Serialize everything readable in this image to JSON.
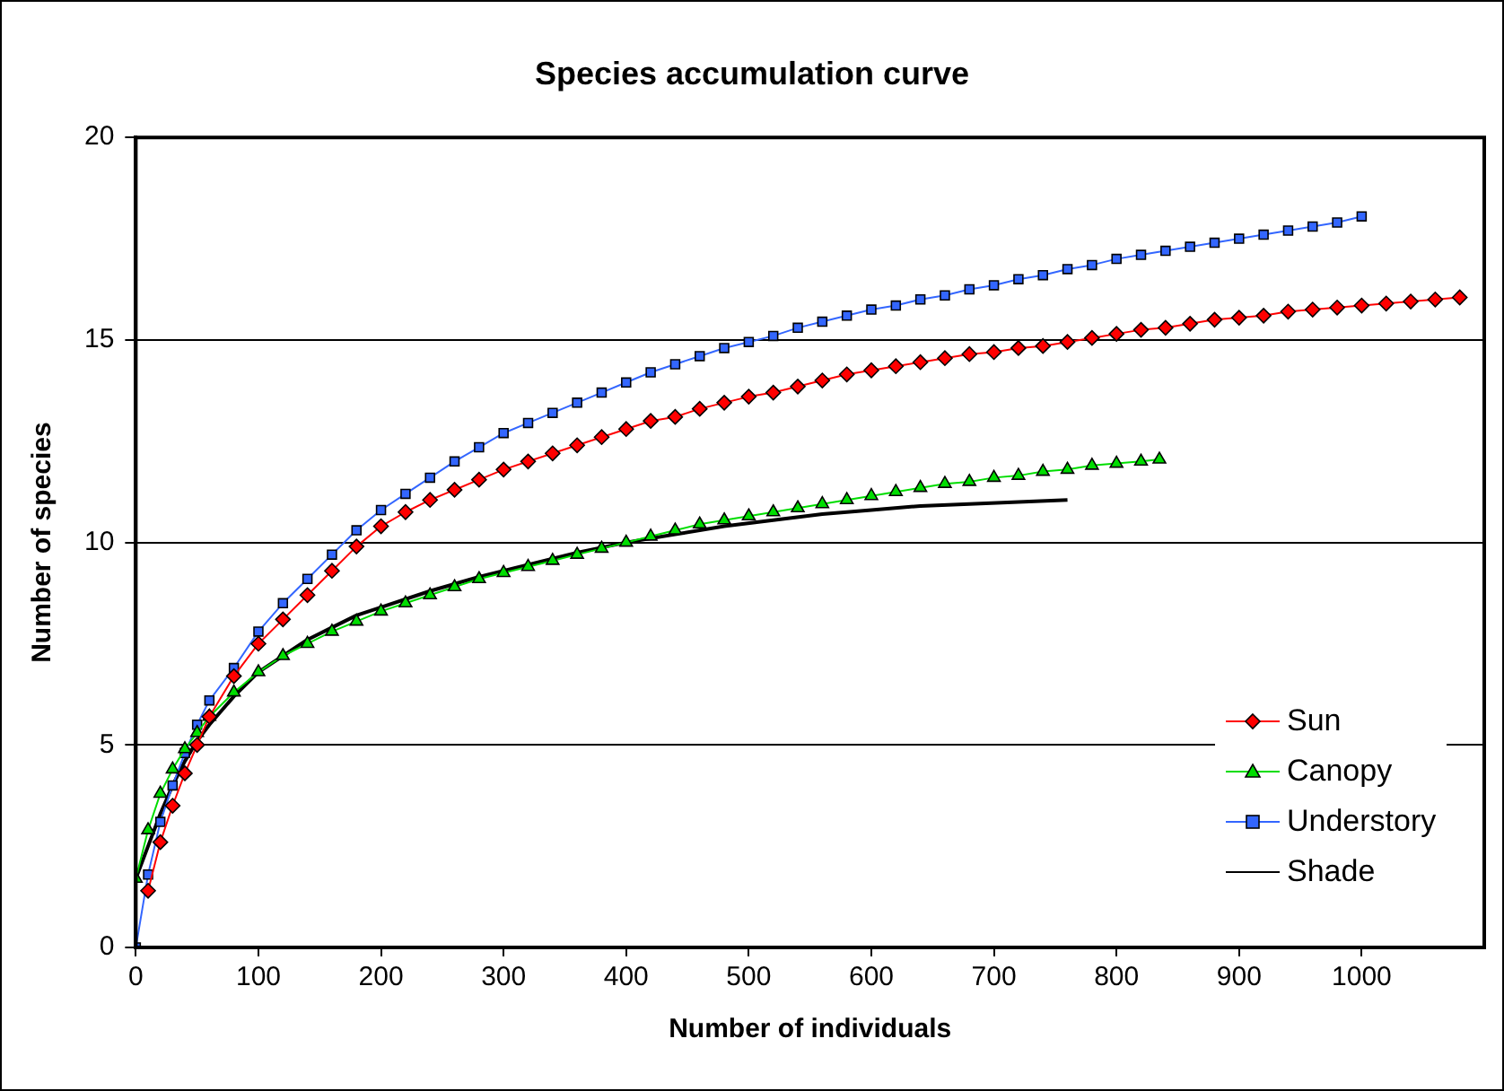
{
  "chart_data": {
    "type": "line",
    "title": "Species accumulation curve",
    "xlabel": "Number of individuals",
    "ylabel": "Number of species",
    "xlim": [
      0,
      1100
    ],
    "xticks": [
      0,
      100,
      200,
      300,
      400,
      500,
      600,
      700,
      800,
      900,
      1000
    ],
    "ylim": [
      0,
      20
    ],
    "yticks": [
      0,
      5,
      10,
      15,
      20
    ],
    "grid": "y",
    "legend": "bottom right",
    "series": [
      {
        "name": "Sun",
        "color": "#ff0000",
        "marker": "diamond",
        "x": [
          10,
          20,
          30,
          40,
          50,
          60,
          80,
          100,
          120,
          140,
          160,
          180,
          200,
          220,
          240,
          260,
          280,
          300,
          320,
          340,
          360,
          380,
          400,
          420,
          440,
          460,
          480,
          500,
          520,
          540,
          560,
          580,
          600,
          620,
          640,
          660,
          680,
          700,
          720,
          740,
          760,
          780,
          800,
          820,
          840,
          860,
          880,
          900,
          920,
          940,
          960,
          980,
          1000,
          1020,
          1040,
          1060,
          1080
        ],
        "values": [
          1.4,
          2.6,
          3.5,
          4.3,
          5.0,
          5.7,
          6.7,
          7.5,
          8.1,
          8.7,
          9.3,
          9.9,
          10.4,
          10.75,
          11.05,
          11.3,
          11.55,
          11.8,
          12,
          12.2,
          12.4,
          12.6,
          12.8,
          13,
          13.1,
          13.3,
          13.45,
          13.6,
          13.7,
          13.85,
          14,
          14.15,
          14.25,
          14.35,
          14.45,
          14.55,
          14.65,
          14.7,
          14.8,
          14.85,
          14.95,
          15.05,
          15.15,
          15.25,
          15.3,
          15.4,
          15.5,
          15.55,
          15.6,
          15.7,
          15.75,
          15.8,
          15.85,
          15.9,
          15.95,
          16,
          16.05
        ]
      },
      {
        "name": "Canopy",
        "color": "#00dd00",
        "marker": "triangle",
        "x": [
          0,
          10,
          20,
          30,
          40,
          50,
          60,
          80,
          100,
          120,
          140,
          160,
          180,
          200,
          220,
          240,
          260,
          280,
          300,
          320,
          340,
          360,
          380,
          400,
          420,
          440,
          460,
          480,
          500,
          520,
          540,
          560,
          580,
          600,
          620,
          640,
          660,
          680,
          700,
          720,
          740,
          760,
          780,
          800,
          820,
          835
        ],
        "values": [
          1.7,
          2.9,
          3.8,
          4.4,
          4.9,
          5.3,
          5.7,
          6.3,
          6.8,
          7.2,
          7.5,
          7.8,
          8.05,
          8.3,
          8.5,
          8.7,
          8.9,
          9.1,
          9.25,
          9.4,
          9.55,
          9.7,
          9.85,
          10,
          10.15,
          10.3,
          10.45,
          10.55,
          10.65,
          10.75,
          10.85,
          10.95,
          11.05,
          11.15,
          11.25,
          11.35,
          11.45,
          11.5,
          11.6,
          11.65,
          11.75,
          11.8,
          11.9,
          11.95,
          12,
          12.05
        ]
      },
      {
        "name": "Understory",
        "color": "#3366ff",
        "marker": "square",
        "x": [
          0,
          10,
          20,
          30,
          40,
          50,
          60,
          80,
          100,
          120,
          140,
          160,
          180,
          200,
          220,
          240,
          260,
          280,
          300,
          320,
          340,
          360,
          380,
          400,
          420,
          440,
          460,
          480,
          500,
          520,
          540,
          560,
          580,
          600,
          620,
          640,
          660,
          680,
          700,
          720,
          740,
          760,
          780,
          800,
          820,
          840,
          860,
          880,
          900,
          920,
          940,
          960,
          980,
          1000
        ],
        "values": [
          0,
          1.8,
          3.1,
          4.0,
          4.8,
          5.5,
          6.1,
          6.9,
          7.8,
          8.5,
          9.1,
          9.7,
          10.3,
          10.8,
          11.2,
          11.6,
          12,
          12.35,
          12.7,
          12.95,
          13.2,
          13.45,
          13.7,
          13.95,
          14.2,
          14.4,
          14.6,
          14.8,
          14.95,
          15.1,
          15.3,
          15.45,
          15.6,
          15.75,
          15.85,
          16,
          16.1,
          16.25,
          16.35,
          16.5,
          16.6,
          16.75,
          16.85,
          17,
          17.1,
          17.2,
          17.3,
          17.4,
          17.5,
          17.6,
          17.7,
          17.8,
          17.9,
          18.05
        ]
      },
      {
        "name": "Shade",
        "color": "#000000",
        "marker": "none",
        "x": [
          0,
          10,
          20,
          30,
          40,
          50,
          60,
          80,
          100,
          120,
          140,
          160,
          180,
          200,
          240,
          280,
          320,
          360,
          400,
          440,
          480,
          520,
          560,
          600,
          640,
          680,
          720,
          760
        ],
        "values": [
          1.7,
          2.5,
          3.3,
          4,
          4.6,
          5.1,
          5.5,
          6.2,
          6.8,
          7.2,
          7.6,
          7.9,
          8.2,
          8.4,
          8.8,
          9.15,
          9.45,
          9.75,
          10,
          10.2,
          10.4,
          10.55,
          10.7,
          10.8,
          10.9,
          10.95,
          11,
          11.05
        ]
      }
    ]
  }
}
